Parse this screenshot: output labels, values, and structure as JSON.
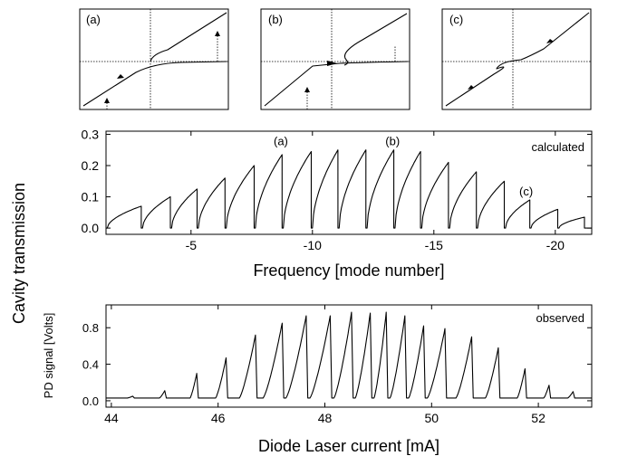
{
  "figure": {
    "shared_ylabel": "Cavity transmission",
    "inset_labels": [
      "(a)",
      "(b)",
      "(c)"
    ]
  },
  "chart_data": [
    {
      "type": "line",
      "panel": "calculated",
      "annotation": "calculated",
      "peak_labels": [
        {
          "text": "(a)",
          "x": -8.7,
          "y": 0.265
        },
        {
          "text": "(b)",
          "x": -13.3,
          "y": 0.265
        },
        {
          "text": "(c)",
          "x": -18.8,
          "y": 0.105
        }
      ],
      "xlabel": "Frequency [mode number]",
      "ylabel": "",
      "xlim": [
        -1.5,
        -21.5
      ],
      "ylim": [
        -0.02,
        0.31
      ],
      "xticks": [
        -5,
        -10,
        -15,
        -20
      ],
      "yticks": [
        0.0,
        0.1,
        0.2,
        0.3
      ],
      "yticklabels": [
        "0.0",
        "0.1",
        "0.2",
        "0.3"
      ],
      "grid": false,
      "peaks": [
        {
          "x": -2.95,
          "y": 0.07
        },
        {
          "x": -4.15,
          "y": 0.1
        },
        {
          "x": -5.25,
          "y": 0.125
        },
        {
          "x": -6.4,
          "y": 0.16
        },
        {
          "x": -7.6,
          "y": 0.2
        },
        {
          "x": -8.75,
          "y": 0.235
        },
        {
          "x": -9.95,
          "y": 0.245
        },
        {
          "x": -11.05,
          "y": 0.25
        },
        {
          "x": -12.2,
          "y": 0.25
        },
        {
          "x": -13.35,
          "y": 0.25
        },
        {
          "x": -14.45,
          "y": 0.245
        },
        {
          "x": -15.6,
          "y": 0.21
        },
        {
          "x": -16.75,
          "y": 0.18
        },
        {
          "x": -17.9,
          "y": 0.15
        },
        {
          "x": -18.95,
          "y": 0.09
        },
        {
          "x": -20.1,
          "y": 0.06
        },
        {
          "x": -21.2,
          "y": 0.035
        }
      ]
    },
    {
      "type": "line",
      "panel": "observed",
      "annotation": "observed",
      "xlabel": "Diode Laser current [mA]",
      "ylabel": "PD signal [Volts]",
      "xlim": [
        43.9,
        53.0
      ],
      "ylim": [
        -0.07,
        1.05
      ],
      "xticks": [
        44,
        46,
        48,
        50,
        52
      ],
      "yticks": [
        0.0,
        0.4,
        0.8
      ],
      "yticklabels": [
        "0.0",
        "0.4",
        "0.8"
      ],
      "grid": false,
      "baseline": 0.03,
      "peaks": [
        {
          "x": 44.4,
          "y": 0.05
        },
        {
          "x": 45.0,
          "y": 0.11
        },
        {
          "x": 45.6,
          "y": 0.3
        },
        {
          "x": 46.15,
          "y": 0.47
        },
        {
          "x": 46.7,
          "y": 0.72
        },
        {
          "x": 47.2,
          "y": 0.85
        },
        {
          "x": 47.65,
          "y": 0.93
        },
        {
          "x": 48.1,
          "y": 0.93
        },
        {
          "x": 48.5,
          "y": 0.97
        },
        {
          "x": 48.85,
          "y": 0.96
        },
        {
          "x": 49.15,
          "y": 0.97
        },
        {
          "x": 49.5,
          "y": 0.93
        },
        {
          "x": 49.85,
          "y": 0.82
        },
        {
          "x": 50.25,
          "y": 0.79
        },
        {
          "x": 50.75,
          "y": 0.7
        },
        {
          "x": 51.25,
          "y": 0.58
        },
        {
          "x": 51.75,
          "y": 0.35
        },
        {
          "x": 52.2,
          "y": 0.17
        },
        {
          "x": 52.65,
          "y": 0.1
        }
      ]
    }
  ]
}
